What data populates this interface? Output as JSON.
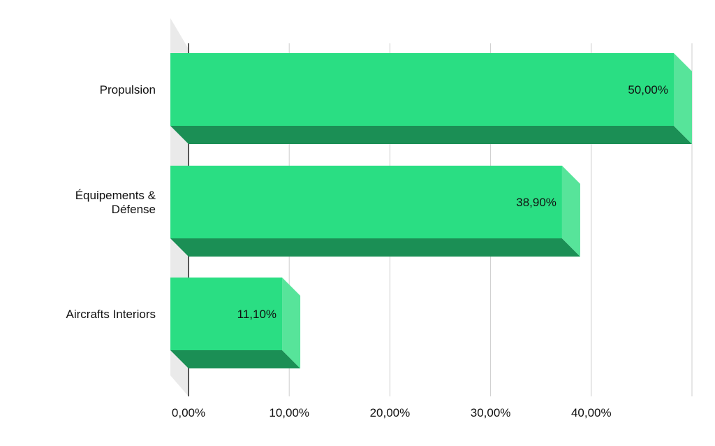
{
  "chart_data": {
    "type": "bar",
    "orientation": "horizontal",
    "style": "3d",
    "categories": [
      "Propulsion",
      "Équipements & Défense",
      "Aircrafts Interiors"
    ],
    "category_label_lines": [
      [
        "Propulsion"
      ],
      [
        "Équipements &",
        "Défense"
      ],
      [
        "Aircrafts Interiors"
      ]
    ],
    "values": [
      50.0,
      38.9,
      11.1
    ],
    "value_labels": [
      "50,00%",
      "38,90%",
      "11,10%"
    ],
    "x_ticks": [
      0,
      10,
      20,
      30,
      40,
      50
    ],
    "x_tick_labels": [
      "0,00%",
      "10,00%",
      "20,00%",
      "30,00%",
      "40,00%",
      ""
    ],
    "xlim": [
      0,
      50
    ],
    "grid": true,
    "title": "",
    "xlabel": "",
    "ylabel": "",
    "colors": {
      "bar_front": "#2ade83",
      "bar_side": "#57e49a",
      "bar_bottom": "#1b8f55",
      "wall": "#eaeaea",
      "grid": "#cccccc",
      "axis": "#222222",
      "text": "#111111"
    }
  }
}
